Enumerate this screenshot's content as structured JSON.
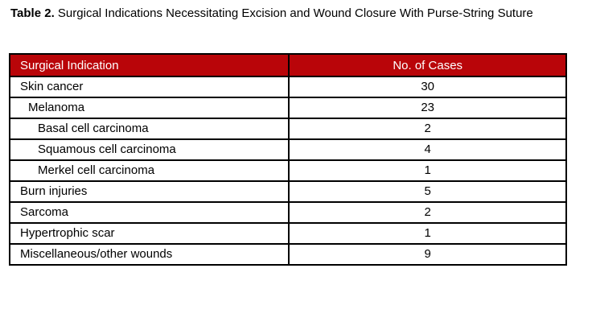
{
  "caption": {
    "label": "Table 2.",
    "text": "Surgical Indications Necessitating Excision and Wound Closure With Purse-String Suture"
  },
  "table": {
    "columns": [
      "Surgical Indication",
      "No. of Cases"
    ],
    "rows": [
      {
        "indication": "Skin cancer",
        "cases": "30",
        "indent": 0
      },
      {
        "indication": "Melanoma",
        "cases": "23",
        "indent": 1
      },
      {
        "indication": "Basal cell carcinoma",
        "cases": "2",
        "indent": 2
      },
      {
        "indication": "Squamous cell carcinoma",
        "cases": "4",
        "indent": 2
      },
      {
        "indication": "Merkel cell carcinoma",
        "cases": "1",
        "indent": 2
      },
      {
        "indication": "Burn injuries",
        "cases": "5",
        "indent": 0
      },
      {
        "indication": "Sarcoma",
        "cases": "2",
        "indent": 0
      },
      {
        "indication": "Hypertrophic scar",
        "cases": "1",
        "indent": 0
      },
      {
        "indication": "Miscellaneous/other wounds",
        "cases": "9",
        "indent": 0
      }
    ],
    "colors": {
      "header_bg": "#B90509",
      "header_text": "#FFFFFF",
      "border": "#000000"
    }
  }
}
